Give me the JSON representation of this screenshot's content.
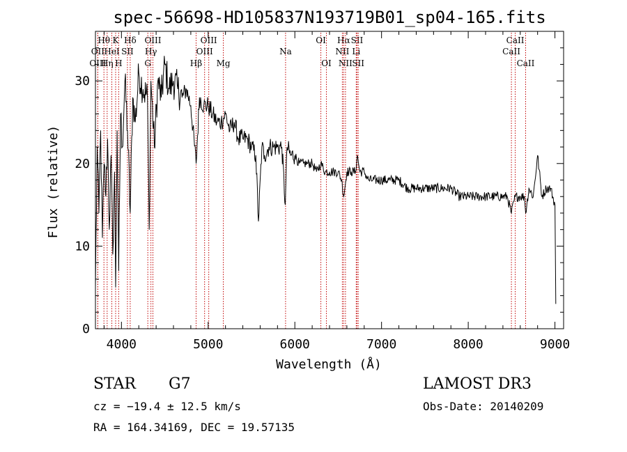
{
  "chart_data": {
    "type": "line",
    "title": "spec-56698-HD105837N193719B01_sp04-165.fits",
    "xlabel": "Wavelength (Å)",
    "ylabel": "Flux (relative)",
    "xlim": [
      3700,
      9100
    ],
    "ylim": [
      0,
      36
    ],
    "x_ticks": [
      4000,
      5000,
      6000,
      7000,
      8000,
      9000
    ],
    "y_ticks": [
      0,
      10,
      20,
      30
    ],
    "grid": false,
    "series": [
      {
        "x": [
          3700,
          3720,
          3740,
          3760,
          3780,
          3800,
          3820,
          3840,
          3860,
          3880,
          3900,
          3920,
          3933,
          3950,
          3968,
          3990,
          4010,
          4040,
          4070,
          4101,
          4130,
          4160,
          4200,
          4250,
          4300,
          4320,
          4340,
          4380,
          4420,
          4460,
          4500,
          4550,
          4600,
          4650,
          4700,
          4750,
          4800,
          4861,
          4900,
          4950,
          5000,
          5050,
          5100,
          5150,
          5200,
          5250,
          5300,
          5350,
          5400,
          5450,
          5500,
          5550,
          5580,
          5620,
          5650,
          5700,
          5750,
          5800,
          5850,
          5890,
          5910,
          5950,
          6000,
          6050,
          6100,
          6150,
          6200,
          6250,
          6300,
          6350,
          6400,
          6450,
          6500,
          6540,
          6563,
          6600,
          6650,
          6700,
          6720,
          6750,
          6800,
          6850,
          6900,
          7000,
          7100,
          7200,
          7300,
          7400,
          7500,
          7600,
          7700,
          7800,
          7900,
          8000,
          8100,
          8200,
          8300,
          8400,
          8450,
          8498,
          8542,
          8600,
          8650,
          8662,
          8700,
          8750,
          8800,
          8850,
          8900,
          8950,
          9000,
          9010
        ],
        "y": [
          5,
          22,
          14,
          24,
          11,
          20,
          16,
          23,
          12,
          21,
          9,
          19,
          5,
          24,
          7,
          26,
          22,
          30,
          24,
          14,
          28,
          25,
          31,
          29,
          28,
          12,
          30,
          22,
          30,
          28,
          32,
          29,
          30,
          29,
          28,
          29,
          27,
          20,
          28,
          27,
          27,
          26,
          25,
          25,
          26,
          24,
          25,
          23,
          23,
          23,
          22,
          21,
          13,
          22,
          21,
          22,
          22,
          22,
          22,
          15,
          22,
          21,
          21,
          20,
          20,
          20,
          20,
          19,
          20,
          19,
          19,
          19,
          19,
          18,
          16,
          19,
          19,
          19,
          21,
          19,
          19,
          18,
          18,
          18,
          18,
          18,
          17,
          17,
          17,
          17,
          17,
          17,
          16,
          16,
          16,
          16,
          16,
          16,
          16,
          14,
          16,
          16,
          16,
          14,
          17,
          16,
          21,
          16,
          17,
          17,
          15,
          3
        ]
      }
    ],
    "line_markers": [
      {
        "label": "Hθ",
        "x": 3798,
        "row": 1
      },
      {
        "label": "OII",
        "x": 3727,
        "row": 2
      },
      {
        "label": "OIII",
        "x": 3727,
        "row": 3
      },
      {
        "label": "K",
        "x": 3933,
        "row": 1
      },
      {
        "label": "HeI",
        "x": 3889,
        "row": 2
      },
      {
        "label": "Hη",
        "x": 3835,
        "row": 3
      },
      {
        "label": "Hδ",
        "x": 4101,
        "row": 1
      },
      {
        "label": "SII",
        "x": 4069,
        "row": 2
      },
      {
        "label": "H",
        "x": 3968,
        "row": 3
      },
      {
        "label": "OIII",
        "x": 4363,
        "row": 1
      },
      {
        "label": "Hγ",
        "x": 4340,
        "row": 2
      },
      {
        "label": "G",
        "x": 4304,
        "row": 3
      },
      {
        "label": "OIII",
        "x": 5007,
        "row": 1
      },
      {
        "label": "OIII",
        "x": 4959,
        "row": 2
      },
      {
        "label": "Hβ",
        "x": 4861,
        "row": 3
      },
      {
        "label": "Mg",
        "x": 5175,
        "row": 3
      },
      {
        "label": "Na",
        "x": 5893,
        "row": 2
      },
      {
        "label": "OI",
        "x": 6300,
        "row": 1
      },
      {
        "label": "OI",
        "x": 6364,
        "row": 3
      },
      {
        "label": "Hα",
        "x": 6563,
        "row": 1
      },
      {
        "label": "SII",
        "x": 6717,
        "row": 1
      },
      {
        "label": "NII",
        "x": 6548,
        "row": 2
      },
      {
        "label": "Li",
        "x": 6708,
        "row": 2
      },
      {
        "label": "NII",
        "x": 6584,
        "row": 3
      },
      {
        "label": "SII",
        "x": 6731,
        "row": 3
      },
      {
        "label": "CaII",
        "x": 8542,
        "row": 1
      },
      {
        "label": "CaII",
        "x": 8498,
        "row": 2
      },
      {
        "label": "CaII",
        "x": 8662,
        "row": 3
      }
    ]
  },
  "info": {
    "class_label": "STAR",
    "subclass": "G7",
    "survey": "LAMOST DR3",
    "redshift": "cz = −19.4 ± 12.5 km/s",
    "obs_date": "Obs-Date: 20140209",
    "coords": "RA = 164.34169, DEC =  19.57135"
  },
  "colors": {
    "line": "#000000",
    "marker": "#c00000",
    "axes": "#000000"
  }
}
